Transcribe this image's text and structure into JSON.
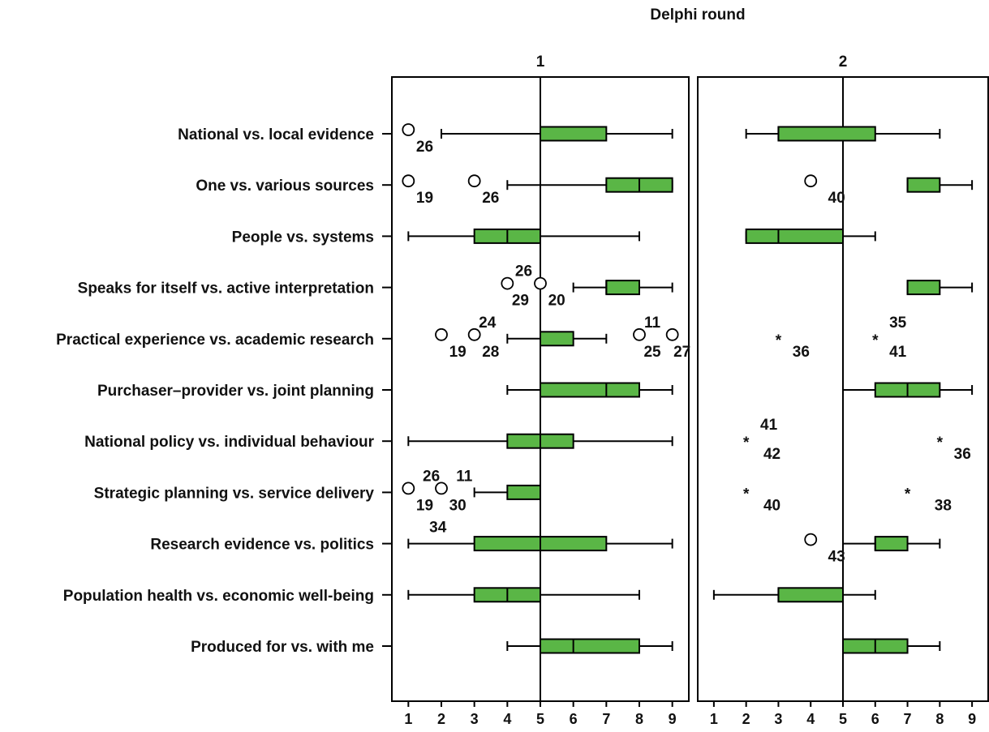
{
  "chart_data": {
    "type": "boxplot",
    "title": "Delphi round",
    "xlim": [
      0.5,
      9.5
    ],
    "xticks": [
      "1",
      "2",
      "3",
      "4",
      "5",
      "6",
      "7",
      "8",
      "9"
    ],
    "reference_line": 5,
    "box_color": "#5ab646",
    "rows": [
      "National vs. local evidence",
      "One vs. various sources",
      "People vs. systems",
      "Speaks for itself vs. active interpretation",
      "Practical experience vs. academic research",
      "Purchaser–provider vs. joint planning",
      "National policy vs. individual behaviour",
      "Strategic planning vs. service delivery",
      "Research evidence vs. politics",
      "Population health vs. economic well-being",
      "Produced for vs. with me"
    ],
    "panels": [
      {
        "label": "1",
        "boxes": [
          {
            "row": 0,
            "whisker_low": 2,
            "q1": 5,
            "median": 5,
            "q3": 7,
            "whisker_high": 9
          },
          {
            "row": 1,
            "whisker_low": 4,
            "q1": 7,
            "median": 8,
            "q3": 9,
            "whisker_high": 9
          },
          {
            "row": 2,
            "whisker_low": 1,
            "q1": 3,
            "median": 4,
            "q3": 5,
            "whisker_high": 8
          },
          {
            "row": 3,
            "whisker_low": 6,
            "q1": 7,
            "median": 7,
            "q3": 8,
            "whisker_high": 9
          },
          {
            "row": 4,
            "whisker_low": 4,
            "q1": 5,
            "median": 5,
            "q3": 6,
            "whisker_high": 7
          },
          {
            "row": 5,
            "whisker_low": 4,
            "q1": 5,
            "median": 7,
            "q3": 8,
            "whisker_high": 9
          },
          {
            "row": 6,
            "whisker_low": 1,
            "q1": 4,
            "median": 5,
            "q3": 6,
            "whisker_high": 9
          },
          {
            "row": 7,
            "whisker_low": 3,
            "q1": 4,
            "median": 5,
            "q3": 5,
            "whisker_high": 5
          },
          {
            "row": 8,
            "whisker_low": 1,
            "q1": 3,
            "median": 5,
            "q3": 7,
            "whisker_high": 9
          },
          {
            "row": 9,
            "whisker_low": 1,
            "q1": 3,
            "median": 4,
            "q3": 5,
            "whisker_high": 8
          },
          {
            "row": 10,
            "whisker_low": 4,
            "q1": 5,
            "median": 6,
            "q3": 8,
            "whisker_high": 9
          }
        ],
        "outliers": [
          {
            "row": 0,
            "x": 1,
            "kind": "circle"
          },
          {
            "row": 1,
            "x": 1,
            "kind": "circle"
          },
          {
            "row": 1,
            "x": 3,
            "kind": "circle"
          },
          {
            "row": 3,
            "x": 4,
            "kind": "circle"
          },
          {
            "row": 3,
            "x": 5,
            "kind": "circle"
          },
          {
            "row": 4,
            "x": 2,
            "kind": "circle"
          },
          {
            "row": 4,
            "x": 3,
            "kind": "circle"
          },
          {
            "row": 4,
            "x": 8,
            "kind": "circle"
          },
          {
            "row": 4,
            "x": 9,
            "kind": "circle"
          },
          {
            "row": 7,
            "x": 1,
            "kind": "circle"
          },
          {
            "row": 7,
            "x": 2,
            "kind": "circle"
          }
        ],
        "annotations": [
          {
            "row": 0,
            "x": 1.2,
            "dy": 1,
            "text": "26"
          },
          {
            "row": 1,
            "x": 1.2,
            "dy": 1,
            "text": "19"
          },
          {
            "row": 1,
            "x": 3.2,
            "dy": 1,
            "text": "26"
          },
          {
            "row": 3,
            "x": 4.2,
            "dy": -1,
            "text": "26"
          },
          {
            "row": 3,
            "x": 4.1,
            "dy": 1,
            "text": "29"
          },
          {
            "row": 3,
            "x": 5.2,
            "dy": 1,
            "text": "20"
          },
          {
            "row": 4,
            "x": 3.1,
            "dy": -1,
            "text": "24"
          },
          {
            "row": 4,
            "x": 2.2,
            "dy": 1,
            "text": "19"
          },
          {
            "row": 4,
            "x": 3.2,
            "dy": 1,
            "text": "28"
          },
          {
            "row": 4,
            "x": 8.1,
            "dy": -1,
            "text": "11"
          },
          {
            "row": 4,
            "x": 8.1,
            "dy": 1,
            "text": "25"
          },
          {
            "row": 4,
            "x": 9,
            "dy": 1,
            "text": "27"
          },
          {
            "row": 7,
            "x": 1.4,
            "dy": -1,
            "text": "26"
          },
          {
            "row": 7,
            "x": 2.4,
            "dy": -1,
            "text": "11"
          },
          {
            "row": 7,
            "x": 1.2,
            "dy": 1,
            "text": "19"
          },
          {
            "row": 7,
            "x": 2.2,
            "dy": 1,
            "text": "30"
          },
          {
            "row": 8,
            "x": 1.6,
            "dy": -1,
            "text": "34"
          }
        ]
      },
      {
        "label": "2",
        "boxes": [
          {
            "row": 0,
            "whisker_low": 2,
            "q1": 3,
            "median": 3,
            "q3": 6,
            "whisker_high": 8
          },
          {
            "row": 1,
            "whisker_low": 7,
            "q1": 7,
            "median": 7,
            "q3": 8,
            "whisker_high": 9
          },
          {
            "row": 2,
            "whisker_low": 2,
            "q1": 2,
            "median": 3,
            "q3": 5,
            "whisker_high": 6
          },
          {
            "row": 3,
            "whisker_low": 7,
            "q1": 7,
            "median": 7,
            "q3": 8,
            "whisker_high": 9
          },
          {
            "row": 5,
            "whisker_low": 5,
            "q1": 6,
            "median": 7,
            "q3": 8,
            "whisker_high": 9
          },
          {
            "row": 8,
            "whisker_low": 5,
            "q1": 6,
            "median": 6,
            "q3": 7,
            "whisker_high": 8
          },
          {
            "row": 9,
            "whisker_low": 1,
            "q1": 3,
            "median": 3,
            "q3": 5,
            "whisker_high": 6
          },
          {
            "row": 10,
            "whisker_low": 5,
            "q1": 5,
            "median": 6,
            "q3": 7,
            "whisker_high": 8
          }
        ],
        "outliers": [
          {
            "row": 1,
            "x": 4,
            "kind": "circle"
          },
          {
            "row": 4,
            "x": 3,
            "kind": "star"
          },
          {
            "row": 4,
            "x": 6,
            "kind": "star"
          },
          {
            "row": 6,
            "x": 2,
            "kind": "star"
          },
          {
            "row": 6,
            "x": 8,
            "kind": "star"
          },
          {
            "row": 7,
            "x": 2,
            "kind": "star"
          },
          {
            "row": 7,
            "x": 7,
            "kind": "star"
          },
          {
            "row": 8,
            "x": 4,
            "kind": "circle"
          }
        ],
        "annotations": [
          {
            "row": 1,
            "x": 4.5,
            "dy": 1,
            "text": "40"
          },
          {
            "row": 4,
            "x": 6.4,
            "dy": -1,
            "text": "35"
          },
          {
            "row": 4,
            "x": 3.4,
            "dy": 1,
            "text": "36"
          },
          {
            "row": 4,
            "x": 6.4,
            "dy": 1,
            "text": "41"
          },
          {
            "row": 6,
            "x": 2.4,
            "dy": -1,
            "text": "41"
          },
          {
            "row": 6,
            "x": 2.5,
            "dy": 1,
            "text": "42"
          },
          {
            "row": 6,
            "x": 8.4,
            "dy": 1,
            "text": "36"
          },
          {
            "row": 7,
            "x": 2.5,
            "dy": 1,
            "text": "40"
          },
          {
            "row": 7,
            "x": 7.8,
            "dy": 1,
            "text": "38"
          },
          {
            "row": 8,
            "x": 4.5,
            "dy": 1,
            "text": "43"
          }
        ]
      }
    ]
  }
}
